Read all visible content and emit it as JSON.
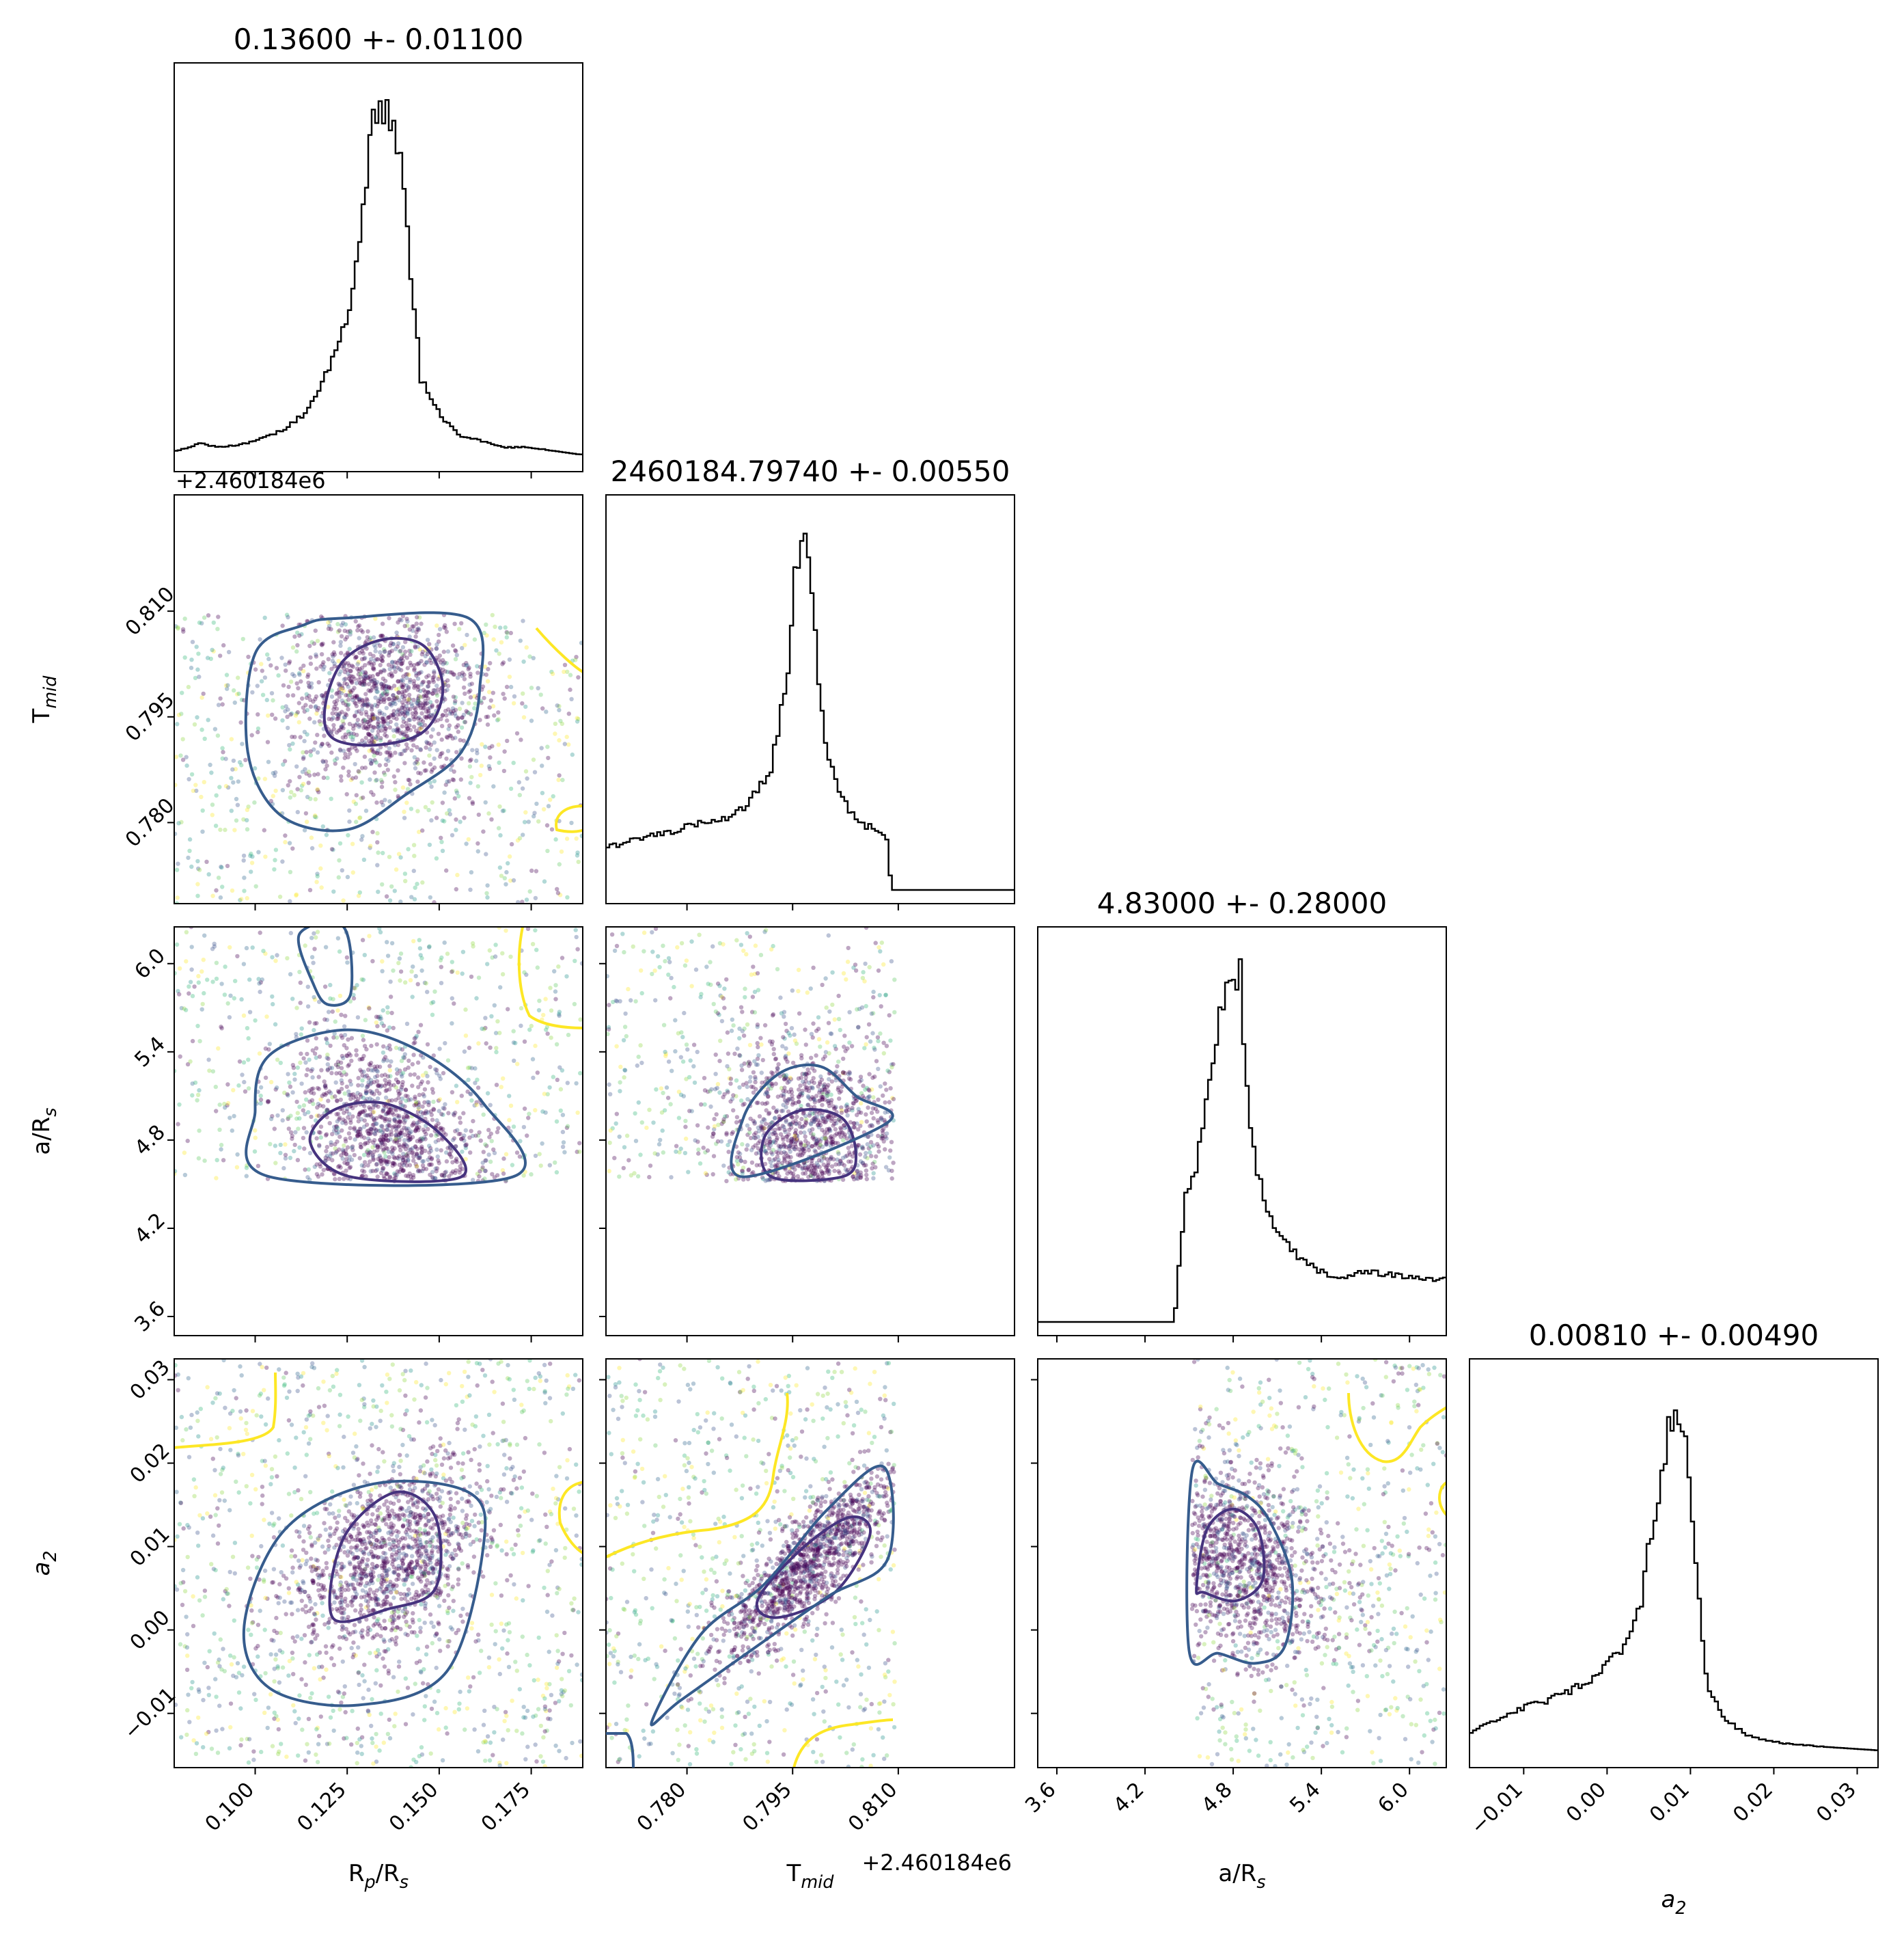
{
  "figure": {
    "titles": [
      "0.13600 +- 0.01100",
      "2460184.79740 +- 0.00550",
      "4.83000 +- 0.28000",
      "0.00810 +- 0.00490"
    ],
    "xlabels": [
      "R$_p$/R$_s$",
      "T$_{mid}$",
      "a/R$_s$",
      "$a_2$"
    ],
    "ylabels": [
      "",
      "T$_{mid}$",
      "a/R$_s$",
      "$a_2$"
    ],
    "offset_text": "+2.460184e6",
    "colors": {
      "hist": "#000000",
      "contour_inner": "#46337e",
      "contour_mid": "#365c8d",
      "contour_outer": "#fde725",
      "points_dense": "#440154"
    }
  },
  "chart_data": {
    "type": "corner",
    "parameters": [
      {
        "name": "R$_p$/R$_s$",
        "median": 0.136,
        "sigma": 0.011,
        "range": [
          0.078,
          0.189
        ],
        "ticks": [
          "0.100",
          "0.125",
          "0.150",
          "0.175"
        ],
        "tick_values": [
          0.1,
          0.125,
          0.15,
          0.175
        ]
      },
      {
        "name": "T$_{mid}$",
        "median": 0.7974,
        "sigma": 0.0055,
        "range": [
          0.7685,
          0.8265
        ],
        "ticks": [
          "0.780",
          "0.795",
          "0.810"
        ],
        "tick_values": [
          0.78,
          0.795,
          0.81
        ],
        "offset": "+2.460184e6"
      },
      {
        "name": "a/R$_s$",
        "median": 4.83,
        "sigma": 0.28,
        "range": [
          3.47,
          6.25
        ],
        "ticks": [
          "3.6",
          "4.2",
          "4.8",
          "5.4",
          "6.0"
        ],
        "tick_values": [
          3.6,
          4.2,
          4.8,
          5.4,
          6.0
        ]
      },
      {
        "name": "$a_2$",
        "median": 0.0081,
        "sigma": 0.0049,
        "range": [
          -0.0165,
          0.0325
        ],
        "ticks": [
          "−0.01",
          "0.00",
          "0.01",
          "0.02",
          "0.03"
        ],
        "tick_values": [
          -0.01,
          0.0,
          0.01,
          0.02,
          0.03
        ]
      }
    ],
    "histograms": [
      {
        "param": 0,
        "x": [
          0.079,
          0.085,
          0.091,
          0.097,
          0.103,
          0.108,
          0.113,
          0.117,
          0.121,
          0.124,
          0.127,
          0.13,
          0.133,
          0.136,
          0.139,
          0.142,
          0.145,
          0.148,
          0.152,
          0.156,
          0.161,
          0.167,
          0.174,
          0.181,
          0.188
        ],
        "y": [
          0.02,
          0.04,
          0.03,
          0.04,
          0.06,
          0.08,
          0.12,
          0.18,
          0.28,
          0.36,
          0.5,
          0.78,
          0.98,
          1.0,
          0.88,
          0.56,
          0.22,
          0.16,
          0.1,
          0.06,
          0.05,
          0.03,
          0.03,
          0.02,
          0.01
        ]
      },
      {
        "param": 1,
        "x": [
          0.769,
          0.773,
          0.777,
          0.781,
          0.785,
          0.788,
          0.79,
          0.792,
          0.794,
          0.7955,
          0.797,
          0.798,
          0.7995,
          0.801,
          0.803,
          0.805,
          0.807,
          0.8085,
          0.809,
          0.812,
          0.82,
          0.826
        ],
        "y": [
          0.12,
          0.14,
          0.16,
          0.18,
          0.2,
          0.23,
          0.27,
          0.35,
          0.55,
          0.92,
          1.0,
          0.75,
          0.42,
          0.3,
          0.22,
          0.18,
          0.17,
          0.14,
          0.0,
          0.0,
          0.0,
          0.0
        ]
      },
      {
        "param": 2,
        "x": [
          3.5,
          4.0,
          4.4,
          4.47,
          4.55,
          4.62,
          4.7,
          4.77,
          4.85,
          4.92,
          5.0,
          5.1,
          5.2,
          5.35,
          5.5,
          5.7,
          5.9,
          6.1,
          6.25
        ],
        "y": [
          0.0,
          0.0,
          0.0,
          0.34,
          0.44,
          0.6,
          0.85,
          1.0,
          0.96,
          0.52,
          0.36,
          0.25,
          0.2,
          0.15,
          0.12,
          0.14,
          0.13,
          0.12,
          0.12
        ]
      },
      {
        "param": 3,
        "x": [
          -0.0165,
          -0.013,
          -0.01,
          -0.007,
          -0.004,
          -0.001,
          0.002,
          0.004,
          0.006,
          0.0075,
          0.009,
          0.0105,
          0.012,
          0.014,
          0.017,
          0.021,
          0.026,
          0.0325
        ],
        "y": [
          0.06,
          0.1,
          0.13,
          0.15,
          0.18,
          0.22,
          0.3,
          0.42,
          0.72,
          0.92,
          0.96,
          0.55,
          0.2,
          0.1,
          0.05,
          0.03,
          0.02,
          0.01
        ]
      }
    ],
    "contours": [
      {
        "x": 0,
        "y": 1,
        "levels": [
          {
            "color": "#46337e",
            "points": [
              [
                0.119,
                0.7965
              ],
              [
                0.124,
                0.803
              ],
              [
                0.135,
                0.806
              ],
              [
                0.146,
                0.805
              ],
              [
                0.151,
                0.799
              ],
              [
                0.146,
                0.793
              ],
              [
                0.133,
                0.791
              ],
              [
                0.121,
                0.792
              ]
            ]
          },
          {
            "color": "#365c8d",
            "points": [
              [
                0.098,
                0.79
              ],
              [
                0.1,
                0.804
              ],
              [
                0.113,
                0.808
              ],
              [
                0.124,
                0.809
              ],
              [
                0.158,
                0.809
              ],
              [
                0.161,
                0.799
              ],
              [
                0.156,
                0.79
              ],
              [
                0.141,
                0.784
              ],
              [
                0.125,
                0.779
              ],
              [
                0.107,
                0.781
              ]
            ]
          }
        ]
      },
      {
        "x": 0,
        "y": 2,
        "levels": [
          {
            "color": "#46337e",
            "points": [
              [
                0.115,
                4.78
              ],
              [
                0.121,
                5.0
              ],
              [
                0.135,
                5.05
              ],
              [
                0.15,
                4.85
              ],
              [
                0.156,
                4.55
              ],
              [
                0.126,
                4.55
              ]
            ]
          },
          {
            "color": "#365c8d",
            "points": [
              [
                0.104,
                4.55
              ],
              [
                0.1,
                5.0
              ],
              [
                0.104,
                5.38
              ],
              [
                0.125,
                5.55
              ],
              [
                0.145,
                5.4
              ],
              [
                0.162,
                5.05
              ],
              [
                0.17,
                4.55
              ]
            ]
          },
          {
            "color": "#365c8d",
            "points": [
              [
                0.112,
                6.2
              ],
              [
                0.116,
                5.85
              ],
              [
                0.12,
                5.72
              ],
              [
                0.126,
                5.8
              ],
              [
                0.124,
                6.25
              ]
            ]
          }
        ]
      },
      {
        "x": 1,
        "y": 2,
        "levels": [
          {
            "color": "#46337e",
            "points": [
              [
                0.792,
                4.55
              ],
              [
                0.791,
                4.82
              ],
              [
                0.796,
                5.0
              ],
              [
                0.802,
                4.95
              ],
              [
                0.804,
                4.7
              ],
              [
                0.802,
                4.55
              ]
            ]
          },
          {
            "color": "#365c8d",
            "points": [
              [
                0.788,
                4.55
              ],
              [
                0.788,
                4.95
              ],
              [
                0.793,
                5.25
              ],
              [
                0.799,
                5.3
              ],
              [
                0.804,
                5.1
              ],
              [
                0.8085,
                4.92
              ]
            ]
          }
        ]
      },
      {
        "x": 0,
        "y": 3,
        "levels": [
          {
            "color": "#46337e",
            "points": [
              [
                0.121,
                0.0015
              ],
              [
                0.124,
                0.011
              ],
              [
                0.138,
                0.0165
              ],
              [
                0.149,
                0.0135
              ],
              [
                0.149,
                0.005
              ],
              [
                0.136,
                0.0025
              ]
            ]
          },
          {
            "color": "#365c8d",
            "points": [
              [
                0.097,
                0.0005
              ],
              [
                0.108,
                0.012
              ],
              [
                0.132,
                0.0175
              ],
              [
                0.158,
                0.0165
              ],
              [
                0.162,
                0.01
              ],
              [
                0.152,
                -0.005
              ],
              [
                0.128,
                -0.009
              ],
              [
                0.104,
                -0.007
              ]
            ]
          }
        ]
      },
      {
        "x": 1,
        "y": 3,
        "levels": [
          {
            "color": "#46337e",
            "points": [
              [
                0.79,
                0.0035
              ],
              [
                0.796,
                0.0095
              ],
              [
                0.803,
                0.0135
              ],
              [
                0.806,
                0.0115
              ],
              [
                0.801,
                0.0045
              ],
              [
                0.793,
                0.0015
              ]
            ]
          },
          {
            "color": "#365c8d",
            "points": [
              [
                0.775,
                -0.011
              ],
              [
                0.782,
                -0.0005
              ],
              [
                0.791,
                0.0055
              ],
              [
                0.8,
                0.0145
              ],
              [
                0.808,
                0.0195
              ],
              [
                0.8085,
                0.0085
              ],
              [
                0.8,
                0.004
              ],
              [
                0.789,
                -0.0025
              ],
              [
                0.779,
                -0.0085
              ]
            ]
          }
        ]
      },
      {
        "x": 2,
        "y": 3,
        "levels": [
          {
            "color": "#46337e",
            "points": [
              [
                4.55,
                0.005
              ],
              [
                4.62,
                0.012
              ],
              [
                4.8,
                0.0145
              ],
              [
                4.97,
                0.012
              ],
              [
                5.0,
                0.006
              ],
              [
                4.82,
                0.0035
              ],
              [
                4.6,
                0.0045
              ]
            ]
          },
          {
            "color": "#365c8d",
            "points": [
              [
                4.5,
                -0.0025
              ],
              [
                4.52,
                0.019
              ],
              [
                4.7,
                0.0175
              ],
              [
                4.9,
                0.016
              ],
              [
                5.05,
                0.013
              ],
              [
                5.2,
                0.006
              ],
              [
                5.15,
                -0.002
              ],
              [
                4.95,
                -0.004
              ],
              [
                4.7,
                -0.0028
              ]
            ]
          }
        ]
      }
    ]
  }
}
